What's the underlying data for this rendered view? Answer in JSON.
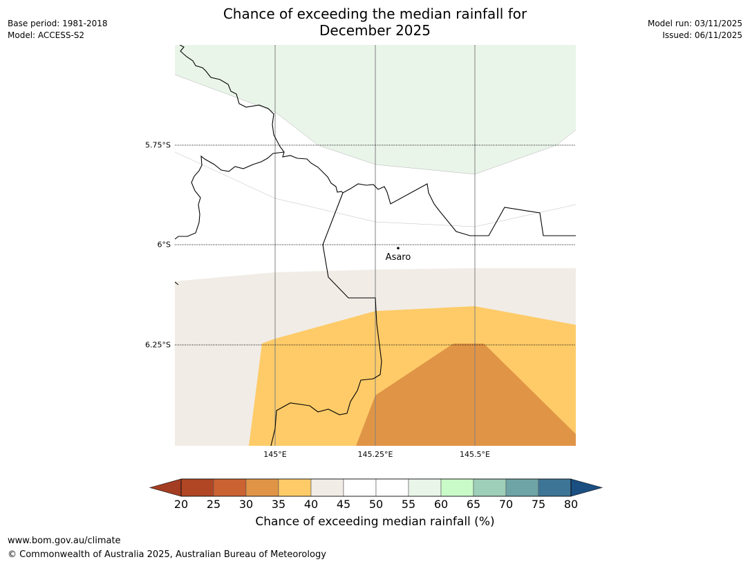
{
  "title": {
    "line1": "Chance of exceeding the median rainfall for",
    "line2": "December 2025"
  },
  "meta": {
    "base_period": "Base period: 1981-2018",
    "model": "Model: ACCESS-S2",
    "model_run": "Model run: 03/11/2025",
    "issued": "Issued: 06/11/2025"
  },
  "map": {
    "latitude_labels": [
      "5.75°S",
      "6°S",
      "6.25°S"
    ],
    "longitude_labels": [
      "145°E",
      "145.25°E",
      "145.5°E"
    ],
    "place": "Asaro",
    "colors": {
      "band_55_60": "#eaf5ea",
      "band_40_45": "#f1ece6",
      "band_35_40": "#fecb68",
      "band_30_35": "#e09546",
      "border": "#000000",
      "gridline": "#808080"
    }
  },
  "colorbar": {
    "ticks": [
      "20",
      "25",
      "30",
      "35",
      "40",
      "45",
      "50",
      "55",
      "60",
      "65",
      "70",
      "75",
      "80"
    ],
    "colors": [
      "#a43e22",
      "#b04624",
      "#cb6232",
      "#e09546",
      "#fecb68",
      "#f1ece6",
      "#ffffff",
      "#ffffff",
      "#eaf5ea",
      "#c9fbc9",
      "#9dcfb9",
      "#6ea4a6",
      "#3d7597",
      "#1b4f82"
    ],
    "label": "Chance of exceeding median rainfall (%)"
  },
  "footer": {
    "url": "www.bom.gov.au/climate",
    "copyright": "© Commonwealth of Australia 2025, Australian Bureau of Meteorology"
  }
}
